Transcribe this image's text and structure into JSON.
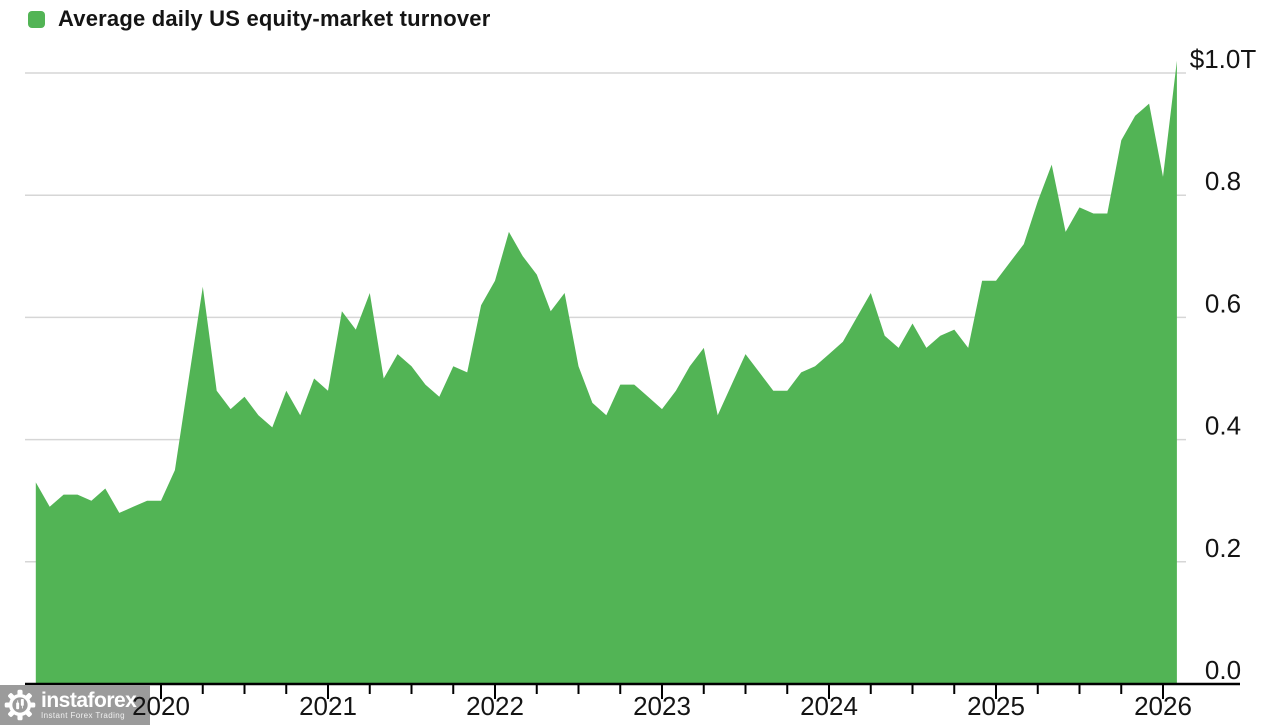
{
  "watermark": {
    "brand": "instaforex",
    "tagline": "Instant Forex Trading"
  },
  "chart_data": {
    "type": "area",
    "title": "Average daily US equity-market turnover",
    "unit": "USD trillions per day",
    "legend_position": "top-left",
    "grid": true,
    "ylim": [
      0.0,
      1.02
    ],
    "colors": {
      "area": "#52b455",
      "grid": "#d6d6d6",
      "axis": "#000000",
      "text": "#141414"
    },
    "y_ticks": [
      {
        "value": 1.0,
        "label": "$1.0T"
      },
      {
        "value": 0.8,
        "label": "0.8"
      },
      {
        "value": 0.6,
        "label": "0.6"
      },
      {
        "value": 0.4,
        "label": "0.4"
      },
      {
        "value": 0.2,
        "label": "0.2"
      },
      {
        "value": 0.0,
        "label": "0.0"
      }
    ],
    "x_ticks": [
      "2020",
      "2021",
      "2022",
      "2023",
      "2024",
      "2025",
      "2026"
    ],
    "points": [
      [
        "2019-04",
        0.33
      ],
      [
        "2019-05",
        0.29
      ],
      [
        "2019-06",
        0.31
      ],
      [
        "2019-07",
        0.31
      ],
      [
        "2019-08",
        0.3
      ],
      [
        "2019-09",
        0.32
      ],
      [
        "2019-10",
        0.28
      ],
      [
        "2019-11",
        0.29
      ],
      [
        "2019-12",
        0.3
      ],
      [
        "2020-01",
        0.3
      ],
      [
        "2020-02",
        0.35
      ],
      [
        "2020-03",
        0.5
      ],
      [
        "2020-04",
        0.65
      ],
      [
        "2020-05",
        0.48
      ],
      [
        "2020-06",
        0.45
      ],
      [
        "2020-07",
        0.47
      ],
      [
        "2020-08",
        0.44
      ],
      [
        "2020-09",
        0.42
      ],
      [
        "2020-10",
        0.48
      ],
      [
        "2020-11",
        0.44
      ],
      [
        "2020-12",
        0.5
      ],
      [
        "2021-01",
        0.48
      ],
      [
        "2021-02",
        0.61
      ],
      [
        "2021-03",
        0.58
      ],
      [
        "2021-04",
        0.64
      ],
      [
        "2021-05",
        0.5
      ],
      [
        "2021-06",
        0.54
      ],
      [
        "2021-07",
        0.52
      ],
      [
        "2021-08",
        0.49
      ],
      [
        "2021-09",
        0.47
      ],
      [
        "2021-10",
        0.52
      ],
      [
        "2021-11",
        0.51
      ],
      [
        "2021-12",
        0.62
      ],
      [
        "2022-01",
        0.66
      ],
      [
        "2022-02",
        0.74
      ],
      [
        "2022-03",
        0.7
      ],
      [
        "2022-04",
        0.67
      ],
      [
        "2022-05",
        0.61
      ],
      [
        "2022-06",
        0.64
      ],
      [
        "2022-07",
        0.52
      ],
      [
        "2022-08",
        0.46
      ],
      [
        "2022-09",
        0.44
      ],
      [
        "2022-10",
        0.49
      ],
      [
        "2022-11",
        0.49
      ],
      [
        "2022-12",
        0.47
      ],
      [
        "2023-01",
        0.45
      ],
      [
        "2023-02",
        0.48
      ],
      [
        "2023-03",
        0.52
      ],
      [
        "2023-04",
        0.55
      ],
      [
        "2023-05",
        0.44
      ],
      [
        "2023-06",
        0.49
      ],
      [
        "2023-07",
        0.54
      ],
      [
        "2023-08",
        0.51
      ],
      [
        "2023-09",
        0.48
      ],
      [
        "2023-10",
        0.48
      ],
      [
        "2023-11",
        0.51
      ],
      [
        "2023-12",
        0.52
      ],
      [
        "2024-01",
        0.54
      ],
      [
        "2024-02",
        0.56
      ],
      [
        "2024-03",
        0.6
      ],
      [
        "2024-04",
        0.64
      ],
      [
        "2024-05",
        0.57
      ],
      [
        "2024-06",
        0.55
      ],
      [
        "2024-07",
        0.59
      ],
      [
        "2024-08",
        0.55
      ],
      [
        "2024-09",
        0.57
      ],
      [
        "2024-10",
        0.58
      ],
      [
        "2024-11",
        0.55
      ],
      [
        "2024-12",
        0.66
      ],
      [
        "2025-01",
        0.66
      ],
      [
        "2025-02",
        0.69
      ],
      [
        "2025-03",
        0.72
      ],
      [
        "2025-04",
        0.79
      ],
      [
        "2025-05",
        0.85
      ],
      [
        "2025-06",
        0.74
      ],
      [
        "2025-07",
        0.78
      ],
      [
        "2025-08",
        0.77
      ],
      [
        "2025-09",
        0.77
      ],
      [
        "2025-10",
        0.89
      ],
      [
        "2025-11",
        0.93
      ],
      [
        "2025-12",
        0.95
      ],
      [
        "2026-01",
        0.83
      ],
      [
        "2026-02",
        1.02
      ]
    ]
  }
}
